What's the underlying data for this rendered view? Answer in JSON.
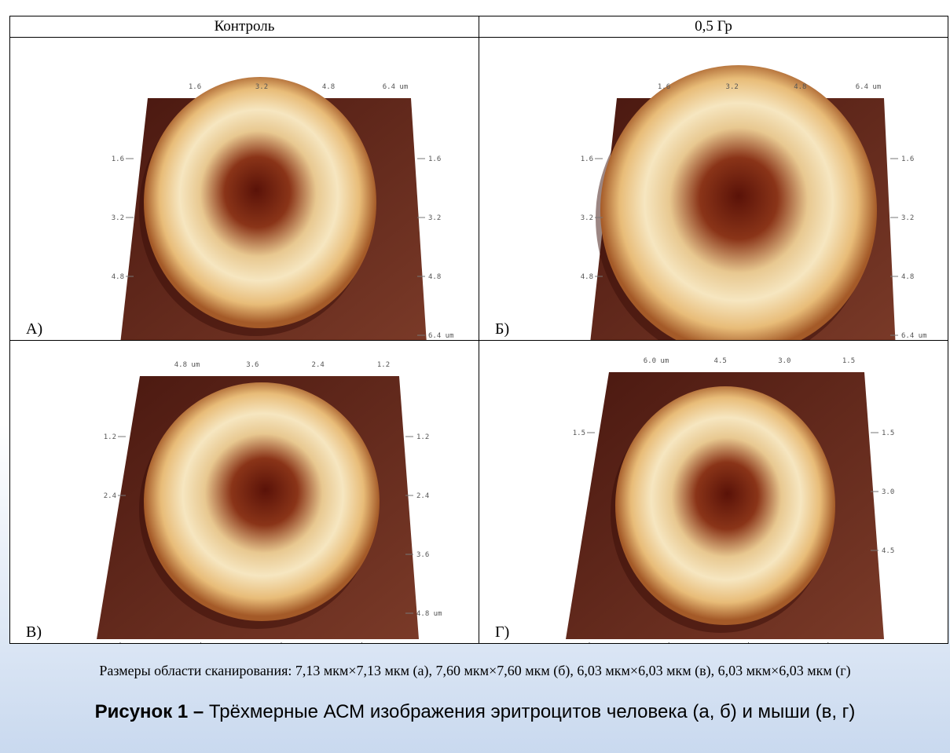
{
  "table": {
    "header": [
      "Контроль",
      "0,5 Гр"
    ],
    "panels": [
      {
        "label": "А)",
        "top": [
          "1.6",
          "3.2",
          "4.8",
          "6.4 um"
        ],
        "left": [
          "1.6",
          "3.2",
          "4.8"
        ],
        "right": [
          "1.6",
          "3.2",
          "4.8",
          "6.4 um"
        ]
      },
      {
        "label": "Б)",
        "top": [
          "1.6",
          "3.2",
          "4.8",
          "6.4 um"
        ],
        "left": [
          "1.6",
          "3.2",
          "4.8"
        ],
        "right": [
          "1.6",
          "3.2",
          "4.8",
          "6.4 um"
        ]
      },
      {
        "label": "В)",
        "top": [
          "4.8 um",
          "3.6",
          "2.4",
          "1.2"
        ],
        "left": [
          "1.2",
          "2.4"
        ],
        "right": [
          "1.2",
          "2.4",
          "3.6",
          "4.8 um"
        ]
      },
      {
        "label": "Г)",
        "top": [
          "6.0 um",
          "4.5",
          "3.0",
          "1.5"
        ],
        "left": [
          "1.5"
        ],
        "right": [
          "1.5",
          "3.0",
          "4.5"
        ]
      }
    ]
  },
  "caption": "Размеры области сканирования: 7,13 мкм×7,13 мкм (а), 7,60 мкм×7,60 мкм (б), 6,03 мкм×6,03 мкм (в), 6,03 мкм×6,03 мкм (г)",
  "figure": {
    "number": "Рисунок 1 –",
    "title": "Трёхмерные АСМ изображения эритроцитов человека (а, б) и мыши (в, г)"
  }
}
